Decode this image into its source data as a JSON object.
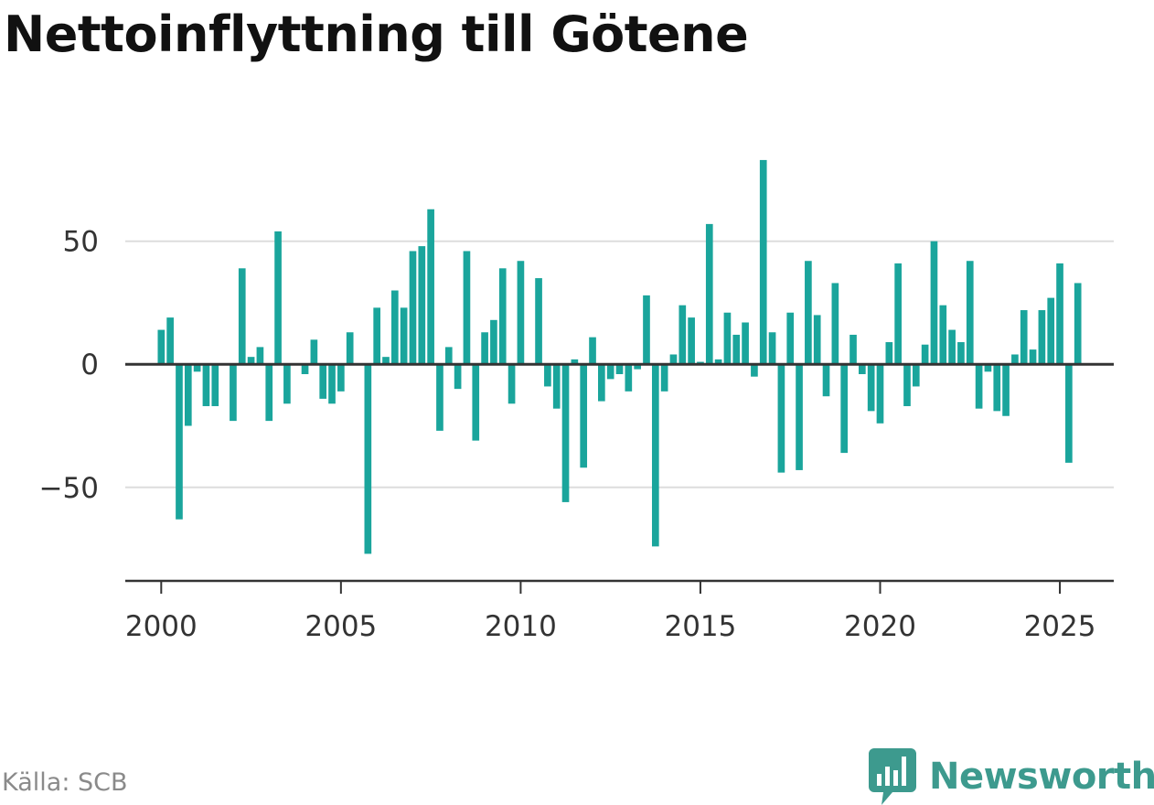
{
  "title": "Nettoinflyttning till Götene",
  "source": "Källa: SCB",
  "brand": {
    "name": "Newsworthy",
    "icon": "newsworthy-logo-icon",
    "color": "#3d9a8e"
  },
  "colors": {
    "bar": "#1aa59c",
    "grid": "#dddddd",
    "axis": "#333333",
    "text": "#333333"
  },
  "chart_data": {
    "type": "bar",
    "title": "Nettoinflyttning till Götene",
    "xlabel": "",
    "ylabel": "",
    "grid": true,
    "xlim": [
      1999,
      2026.5
    ],
    "ylim": [
      -88,
      80
    ],
    "x_ticks": [
      2000,
      2005,
      2010,
      2015,
      2020,
      2025
    ],
    "y_ticks": [
      -50,
      0,
      50
    ],
    "y_tick_labels": [
      "−50",
      "0",
      "50"
    ],
    "period": "quarterly",
    "series": [
      {
        "values": [
          14,
          19,
          -63,
          -25,
          -3,
          -17,
          -17,
          0,
          -23,
          39,
          3,
          7,
          -23,
          54,
          -16,
          0,
          -4,
          10,
          -14,
          -16,
          -11,
          13,
          0,
          -77,
          23,
          3,
          30,
          23,
          46,
          48,
          63,
          -27,
          7,
          -10,
          46,
          -31,
          13,
          18,
          39,
          -16,
          42,
          0,
          35,
          -9,
          -18,
          -56,
          2,
          -42,
          11,
          -15,
          -6,
          -4,
          -11,
          -2,
          28,
          -74,
          -11,
          4,
          24,
          19,
          1,
          57,
          2,
          21,
          12,
          17,
          -5,
          83,
          13,
          -44,
          21,
          -43,
          42,
          20,
          -13,
          33,
          -36,
          12,
          -4,
          -19,
          -24,
          9,
          41,
          -17,
          -9,
          8,
          50,
          24,
          14,
          9,
          42,
          -18,
          -3,
          -19,
          -21,
          4,
          22,
          6,
          22,
          27,
          41,
          -40,
          33
        ]
      }
    ]
  }
}
